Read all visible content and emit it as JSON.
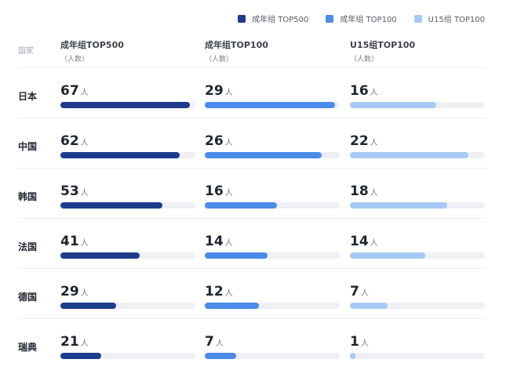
{
  "legend": [
    {
      "label": "成年组 TOP500",
      "color": "#1d3c8c"
    },
    {
      "label": "成年组 TOP100",
      "color": "#4b8bea"
    },
    {
      "label": "U15组 TOP100",
      "color": "#a6caf5"
    }
  ],
  "headers": {
    "country": "国家",
    "columns": [
      {
        "title": "成年组TOP500",
        "sub": "（人数）"
      },
      {
        "title": "成年组TOP100",
        "sub": "（人数）"
      },
      {
        "title": "U15组TOP100",
        "sub": "（人数）"
      }
    ]
  },
  "unit": "人",
  "chart_data": {
    "type": "bar",
    "categories": [
      "日本",
      "中国",
      "韩国",
      "法国",
      "德国",
      "瑞典"
    ],
    "series": [
      {
        "name": "成年组 TOP500",
        "values": [
          67,
          62,
          53,
          41,
          29,
          21
        ],
        "max": 70
      },
      {
        "name": "成年组 TOP100",
        "values": [
          29,
          26,
          16,
          14,
          12,
          7
        ],
        "max": 30
      },
      {
        "name": "U15组 TOP100",
        "values": [
          16,
          22,
          18,
          14,
          7,
          1
        ],
        "max": 25
      }
    ],
    "colors": [
      "#1d3c8c",
      "#4b8bea",
      "#a6caf5"
    ],
    "track_color": "#eff0f4",
    "xlabel": "",
    "ylabel": ""
  }
}
